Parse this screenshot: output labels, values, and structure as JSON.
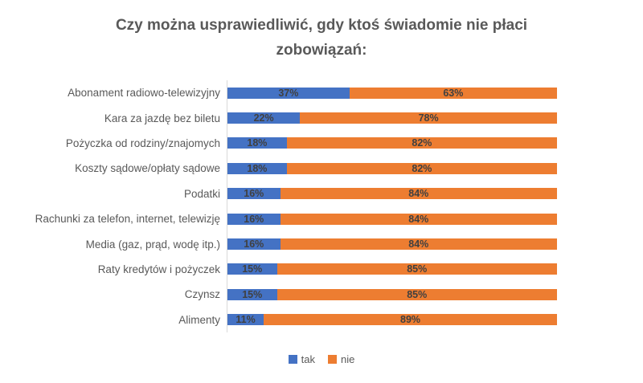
{
  "title": "Czy można usprawiedliwić, gdy ktoś świadomie nie płaci zobowiązań:",
  "colors": {
    "tak": "#4472C4",
    "nie": "#ED7D31",
    "title_text": "#595959",
    "category_text": "#595959",
    "data_label_text": "#404040",
    "axis_line": "#D9D9D9",
    "background": "#FFFFFF"
  },
  "legend": [
    {
      "label": "tak",
      "color": "#4472C4"
    },
    {
      "label": "nie",
      "color": "#ED7D31"
    }
  ],
  "chart_data": {
    "type": "bar",
    "orientation": "horizontal",
    "stacked": true,
    "value_format": "percent",
    "xlim": [
      0,
      100
    ],
    "grid": false,
    "legend_position": "bottom",
    "title": "Czy można usprawiedliwić, gdy ktoś świadomie nie płaci zobowiązań:",
    "categories": [
      "Abonament radiowo-telewizyjny",
      "Kara za jazdę bez biletu",
      "Pożyczka od rodziny/znajomych",
      "Koszty sądowe/opłaty sądowe",
      "Podatki",
      "Rachunki za telefon, internet, telewizję",
      "Media (gaz, prąd, wodę itp.)",
      "Raty kredytów i pożyczek",
      "Czynsz",
      "Alimenty"
    ],
    "series": [
      {
        "name": "tak",
        "color": "#4472C4",
        "values": [
          37,
          22,
          18,
          18,
          16,
          16,
          16,
          15,
          15,
          11
        ]
      },
      {
        "name": "nie",
        "color": "#ED7D31",
        "values": [
          63,
          78,
          82,
          82,
          84,
          84,
          84,
          85,
          85,
          89
        ]
      }
    ]
  }
}
